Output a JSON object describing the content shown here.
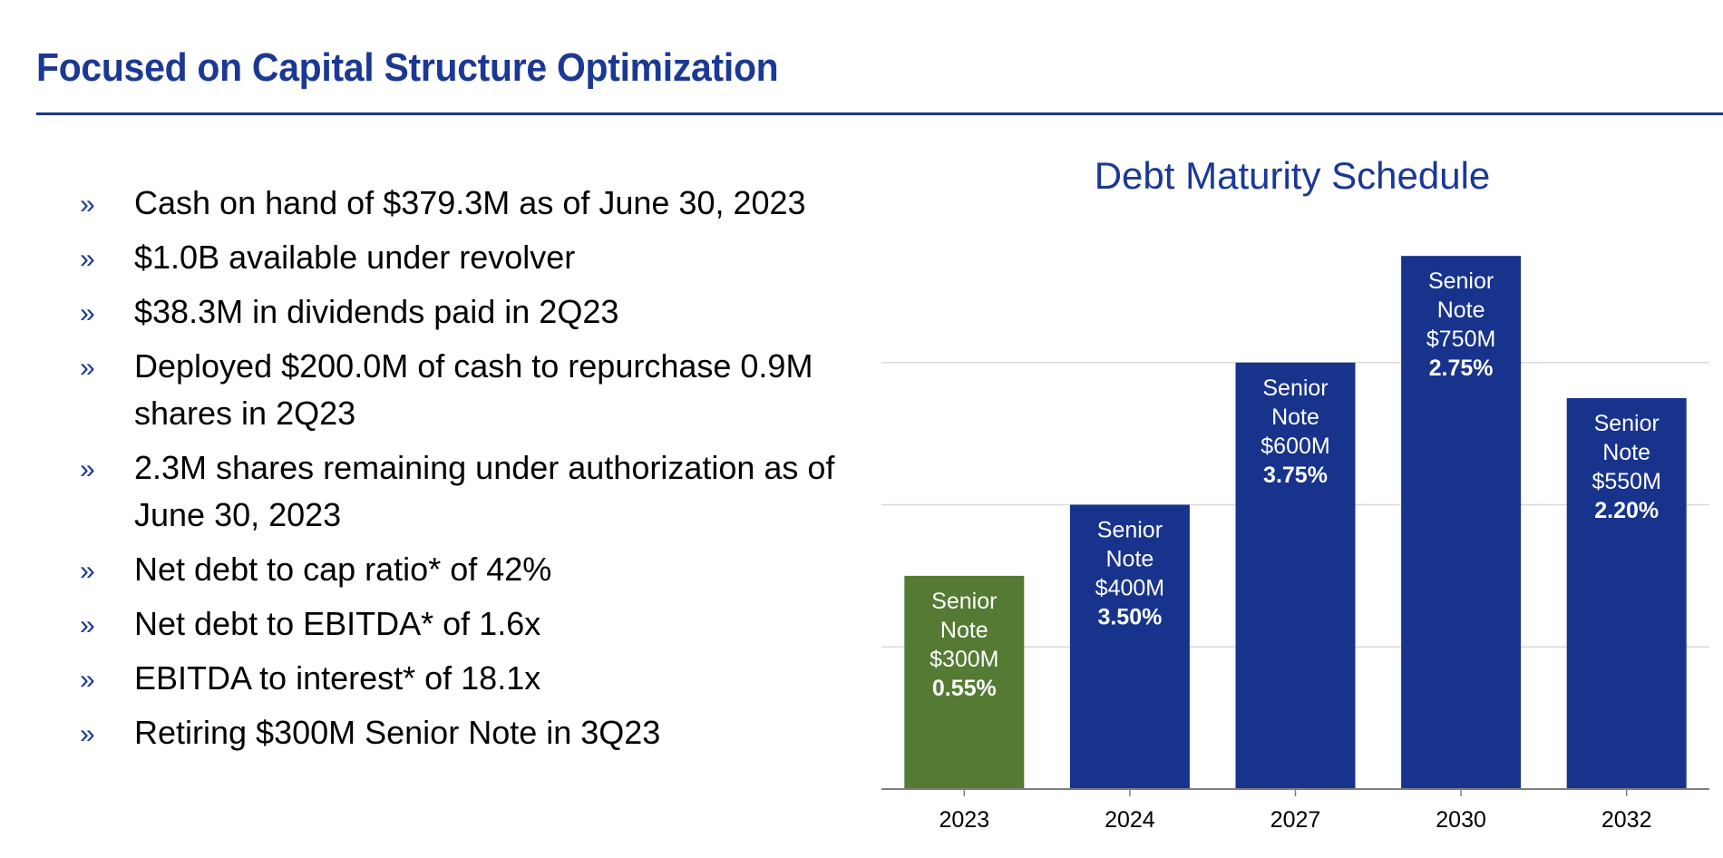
{
  "header": {
    "title": "Focused on Capital Structure Optimization"
  },
  "bullet_marker": "»",
  "bullets": [
    "Cash on hand of $379.3M as of June 30, 2023",
    "$1.0B available under revolver",
    "$38.3M in dividends paid in 2Q23",
    "Deployed $200.0M of cash to repurchase 0.9M shares in 2Q23",
    "2.3M shares remaining under authorization as of June 30, 2023",
    "Net debt to cap ratio* of 42%",
    "Net debt to EBITDA* of 1.6x",
    "EBITDA to interest* of 18.1x",
    "Retiring $300M Senior Note in 3Q23"
  ],
  "chart_data": {
    "type": "bar",
    "title": "Debt Maturity Schedule",
    "categories": [
      "2023",
      "2024",
      "2027",
      "2030",
      "2032"
    ],
    "values": [
      300,
      400,
      600,
      750,
      550
    ],
    "value_unit": "$M",
    "ylim": [
      0,
      800
    ],
    "grid": true,
    "yaxis_visible": false,
    "bar_labels": [
      {
        "line1": "Senior",
        "line2": "Note",
        "amount": "$300M",
        "rate": "0.55%"
      },
      {
        "line1": "Senior",
        "line2": "Note",
        "amount": "$400M",
        "rate": "3.50%"
      },
      {
        "line1": "Senior",
        "line2": "Note",
        "amount": "$600M",
        "rate": "3.75%"
      },
      {
        "line1": "Senior",
        "line2": "Note",
        "amount": "$750M",
        "rate": "2.75%"
      },
      {
        "line1": "Senior",
        "line2": "Note",
        "amount": "$550M",
        "rate": "2.20%"
      }
    ],
    "colors": [
      "#547a33",
      "#17338c",
      "#17338c",
      "#17338c",
      "#17338c"
    ]
  }
}
